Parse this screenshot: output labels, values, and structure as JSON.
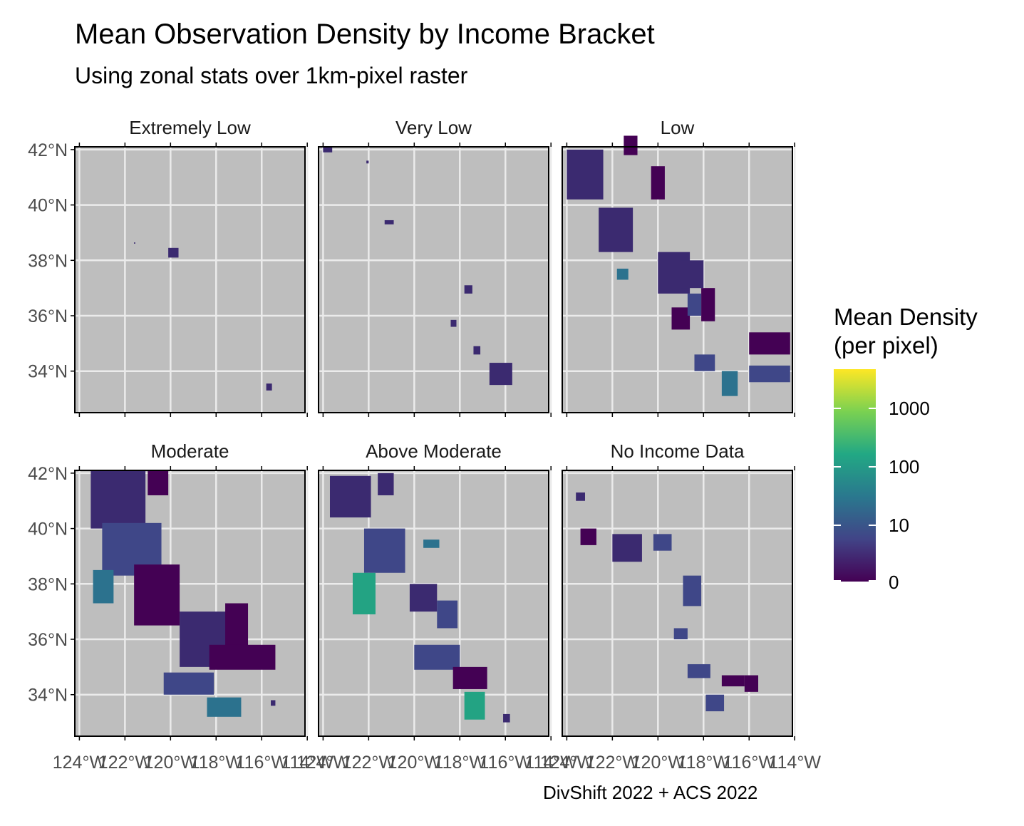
{
  "title": "Mean Observation Density by Income Bracket",
  "subtitle": "Using zonal stats over 1km-pixel raster",
  "caption": "DivShift 2022 + ACS 2022",
  "chart_data": {
    "type": "choropleth-facets",
    "facets": [
      "Extremely Low",
      "Very Low",
      "Low",
      "Moderate",
      "Above Moderate",
      "No Income Data"
    ],
    "y_ticks": [
      "42°N",
      "40°N",
      "38°N",
      "36°N",
      "34°N"
    ],
    "y_tick_values": [
      42,
      40,
      38,
      36,
      34
    ],
    "x_ticks": [
      "124°W",
      "122°W",
      "120°W",
      "118°W",
      "116°W",
      "114°W"
    ],
    "x_tick_values": [
      -124,
      -122,
      -120,
      -118,
      -116,
      -114
    ],
    "xlim": [
      -124.2,
      -114.1
    ],
    "ylim": [
      32.5,
      42.1
    ],
    "legend": {
      "title_lines": [
        "Mean Density",
        "(per pixel)"
      ],
      "scale": "log",
      "ticks": [
        "1000",
        "100",
        "10",
        "0"
      ],
      "tick_values": [
        1000,
        100,
        10,
        0
      ],
      "palette": [
        "#440154",
        "#414487",
        "#2a788e",
        "#22a884",
        "#7ad151",
        "#fde725"
      ]
    },
    "panel_background": "#bebebe",
    "grid": true,
    "colors": {
      "low": "#440154",
      "low2": "#3b2a70",
      "mid_low": "#3f4788",
      "mid": "#2c728e",
      "mid_high": "#23a383",
      "high": "#fde725"
    }
  }
}
